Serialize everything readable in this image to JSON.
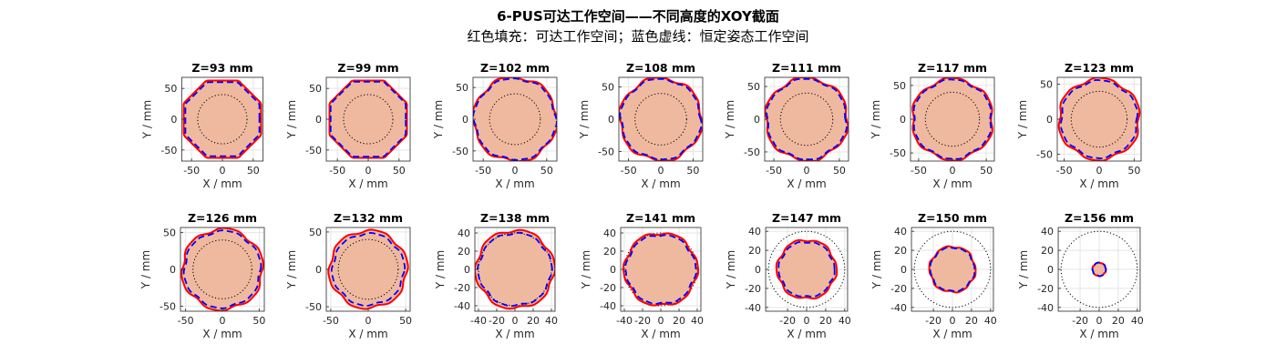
{
  "figure": {
    "title_line1": "6-PUS可达工作空间——不同高度的XOY截面",
    "title_line2": "红色填充：可达工作空间；蓝色虚线：恒定姿态工作空间"
  },
  "colors": {
    "fill": "#efb9a0",
    "reachable": "#ff0000",
    "constant": "#0000ff",
    "grid": "#e5e5e5",
    "ref": "#000000"
  },
  "chart_data": [
    {
      "type": "area",
      "title": "Z=93 mm",
      "xlabel": "X / mm",
      "ylabel": "Y / mm",
      "xlim": [
        -66,
        66
      ],
      "ylim": [
        -68,
        68
      ],
      "xticks": [
        -50,
        0,
        50
      ],
      "yticks": [
        -50,
        0,
        50
      ],
      "grid": true,
      "outer_shape": "octagon",
      "reachable_radius": 68,
      "constant_radius": 65,
      "reference_circle_radius": 40
    },
    {
      "type": "area",
      "title": "Z=99 mm",
      "xlabel": "X / mm",
      "ylabel": "Y / mm",
      "xlim": [
        -68,
        68
      ],
      "ylim": [
        -68,
        68
      ],
      "xticks": [
        -50,
        0,
        50
      ],
      "yticks": [
        -50,
        0,
        50
      ],
      "grid": true,
      "outer_shape": "octagon",
      "reachable_radius": 68,
      "constant_radius": 66,
      "reference_circle_radius": 40
    },
    {
      "type": "area",
      "title": "Z=102 mm",
      "xlabel": "X / mm",
      "ylabel": "Y / mm",
      "xlim": [
        -66,
        66
      ],
      "ylim": [
        -66,
        66
      ],
      "xticks": [
        -50,
        0,
        50
      ],
      "yticks": [
        -50,
        0,
        50
      ],
      "grid": true,
      "reachable_radius": 66,
      "constant_radius": 64,
      "reference_circle_radius": 40
    },
    {
      "type": "area",
      "title": "Z=108 mm",
      "xlabel": "X / mm",
      "ylabel": "Y / mm",
      "xlim": [
        -65,
        65
      ],
      "ylim": [
        -65,
        65
      ],
      "xticks": [
        -50,
        0,
        50
      ],
      "yticks": [
        -50,
        0,
        50
      ],
      "grid": true,
      "reachable_radius": 64,
      "constant_radius": 62,
      "reference_circle_radius": 40
    },
    {
      "type": "area",
      "title": "Z=111 mm",
      "xlabel": "X / mm",
      "ylabel": "Y / mm",
      "xlim": [
        -64,
        64
      ],
      "ylim": [
        -64,
        64
      ],
      "xticks": [
        -50,
        0,
        50
      ],
      "yticks": [
        -50,
        0,
        50
      ],
      "grid": true,
      "reachable_radius": 63,
      "constant_radius": 61,
      "reference_circle_radius": 40
    },
    {
      "type": "area",
      "title": "Z=117 mm",
      "xlabel": "X / mm",
      "ylabel": "Y / mm",
      "xlim": [
        -62,
        62
      ],
      "ylim": [
        -62,
        62
      ],
      "xticks": [
        -50,
        0,
        50
      ],
      "yticks": [
        -50,
        0,
        50
      ],
      "grid": true,
      "reachable_radius": 60,
      "constant_radius": 58,
      "reference_circle_radius": 40
    },
    {
      "type": "area",
      "title": "Z=123 mm",
      "xlabel": "X / mm",
      "ylabel": "Y / mm",
      "xlim": [
        -60,
        60
      ],
      "ylim": [
        -60,
        60
      ],
      "xticks": [
        -50,
        0,
        50
      ],
      "yticks": [
        -50,
        0,
        50
      ],
      "grid": true,
      "reachable_radius": 58,
      "constant_radius": 55,
      "reference_circle_radius": 40
    },
    {
      "type": "area",
      "title": "Z=126 mm",
      "xlabel": "X / mm",
      "ylabel": "Y / mm",
      "xlim": [
        -57,
        57
      ],
      "ylim": [
        -57,
        57
      ],
      "xticks": [
        -50,
        0,
        50
      ],
      "yticks": [
        -50,
        0,
        50
      ],
      "grid": true,
      "reachable_radius": 55,
      "constant_radius": 52,
      "reference_circle_radius": 40
    },
    {
      "type": "area",
      "title": "Z=132 mm",
      "xlabel": "X / mm",
      "ylabel": "Y / mm",
      "xlim": [
        -56,
        56
      ],
      "ylim": [
        -56,
        56
      ],
      "xticks": [
        -50,
        0,
        50
      ],
      "yticks": [
        -50,
        0,
        50
      ],
      "grid": true,
      "reachable_radius": 52,
      "constant_radius": 48,
      "reference_circle_radius": 40
    },
    {
      "type": "area",
      "title": "Z=138 mm",
      "xlabel": "X / mm",
      "ylabel": "Y / mm",
      "xlim": [
        -44,
        44
      ],
      "ylim": [
        -46,
        46
      ],
      "xticks": [
        -40,
        -20,
        0,
        20,
        40
      ],
      "yticks": [
        -40,
        -20,
        0,
        20,
        40
      ],
      "grid": true,
      "reachable_radius": 43,
      "constant_radius": 40,
      "reference_circle_radius": 40
    },
    {
      "type": "area",
      "title": "Z=141 mm",
      "xlabel": "X / mm",
      "ylabel": "Y / mm",
      "xlim": [
        -44,
        44
      ],
      "ylim": [
        -46,
        46
      ],
      "xticks": [
        -40,
        -20,
        0,
        20,
        40
      ],
      "yticks": [
        -40,
        -20,
        0,
        20,
        40
      ],
      "grid": true,
      "reachable_radius": 40,
      "constant_radius": 38,
      "reference_circle_radius": 40
    },
    {
      "type": "area",
      "title": "Z=147 mm",
      "xlabel": "X / mm",
      "ylabel": "Y / mm",
      "xlim": [
        -43,
        43
      ],
      "ylim": [
        -44,
        44
      ],
      "xticks": [
        -20,
        0,
        20,
        40
      ],
      "yticks": [
        -40,
        -20,
        0,
        20,
        40
      ],
      "grid": true,
      "reachable_radius": 31,
      "constant_radius": 29,
      "reference_circle_radius": 40
    },
    {
      "type": "area",
      "title": "Z=150 mm",
      "xlabel": "X / mm",
      "ylabel": "Y / mm",
      "xlim": [
        -43,
        43
      ],
      "ylim": [
        -44,
        44
      ],
      "xticks": [
        -20,
        0,
        20,
        40
      ],
      "yticks": [
        -40,
        -20,
        0,
        20,
        40
      ],
      "grid": true,
      "reachable_radius": 24,
      "constant_radius": 23,
      "reference_circle_radius": 40
    },
    {
      "type": "area",
      "title": "Z=156 mm",
      "xlabel": "X / mm",
      "ylabel": "Y / mm",
      "xlim": [
        -43,
        43
      ],
      "ylim": [
        -44,
        44
      ],
      "xticks": [
        -20,
        0,
        20,
        40
      ],
      "yticks": [
        -40,
        -20,
        0,
        20,
        40
      ],
      "grid": true,
      "reachable_radius": 7,
      "constant_radius": 7,
      "reference_circle_radius": 40
    }
  ]
}
